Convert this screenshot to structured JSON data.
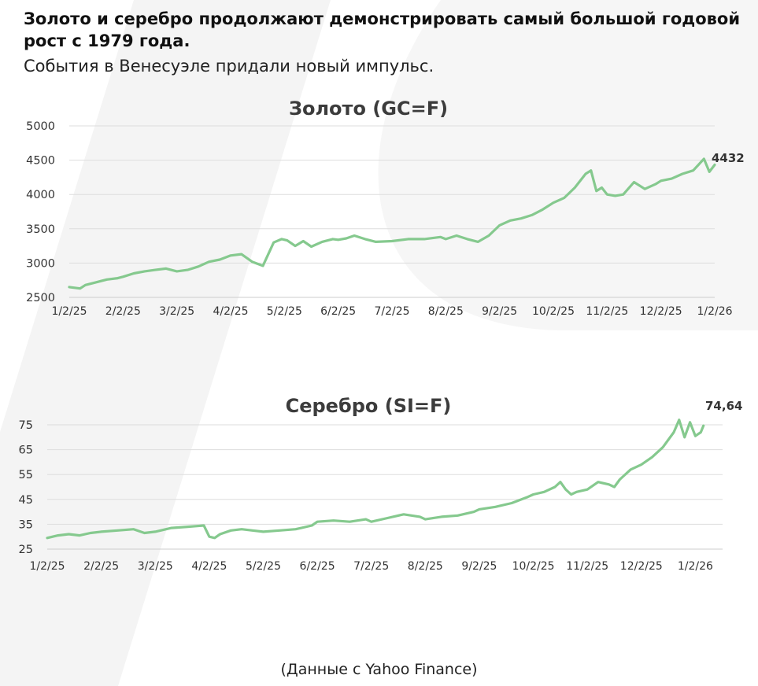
{
  "headline": "Золото и серебро продолжают демонстрировать самый большой годовой рост с 1979 года.",
  "subhead": "События в Венесуэле придали новый импульс.",
  "source": "(Данные с Yahoo Finance)",
  "colors": {
    "series": "#85c98e",
    "grid": "#dddddd",
    "text": "#333333"
  },
  "chart_data": [
    {
      "type": "line",
      "title": "Золото (GC=F)",
      "xlabel": "",
      "ylabel": "",
      "y_ticks": [
        "2500",
        "3000",
        "3500",
        "4000",
        "4500",
        "5000"
      ],
      "ylim": [
        2500,
        5000
      ],
      "x_ticks": [
        "1/2/25",
        "2/2/25",
        "3/2/25",
        "4/2/25",
        "5/2/25",
        "6/2/25",
        "7/2/25",
        "8/2/25",
        "9/2/25",
        "10/2/25",
        "11/2/25",
        "12/2/25",
        "1/2/26"
      ],
      "end_label": "4432",
      "grid": true,
      "series": [
        {
          "x": [
            0,
            0.1,
            0.2,
            0.3,
            0.5,
            0.7,
            0.9,
            1.0,
            1.2,
            1.4,
            1.6,
            1.8,
            2.0,
            2.2,
            2.4,
            2.6,
            2.8,
            3.0,
            3.2,
            3.4,
            3.6,
            3.8,
            3.95,
            4.05,
            4.2,
            4.35,
            4.5,
            4.7,
            4.9,
            5.0,
            5.15,
            5.3,
            5.5,
            5.7,
            6.0,
            6.3,
            6.6,
            6.9,
            7.0,
            7.2,
            7.4,
            7.6,
            7.8,
            8.0,
            8.2,
            8.4,
            8.6,
            8.8,
            9.0,
            9.2,
            9.4,
            9.6,
            9.7,
            9.8,
            9.9,
            10.0,
            10.15,
            10.3,
            10.5,
            10.7,
            10.9,
            11.0,
            11.2,
            11.4,
            11.6,
            11.8,
            11.9,
            12.0
          ],
          "values": [
            2650,
            2640,
            2630,
            2680,
            2720,
            2760,
            2780,
            2800,
            2850,
            2880,
            2900,
            2920,
            2880,
            2900,
            2950,
            3020,
            3050,
            3110,
            3130,
            3020,
            2960,
            3300,
            3350,
            3330,
            3250,
            3320,
            3240,
            3310,
            3350,
            3340,
            3360,
            3400,
            3350,
            3310,
            3320,
            3350,
            3350,
            3380,
            3350,
            3400,
            3350,
            3310,
            3400,
            3550,
            3620,
            3650,
            3700,
            3780,
            3880,
            3950,
            4100,
            4300,
            4350,
            4050,
            4100,
            4000,
            3980,
            4000,
            4180,
            4080,
            4150,
            4200,
            4230,
            4300,
            4350,
            4520,
            4330,
            4432
          ]
        }
      ]
    },
    {
      "type": "line",
      "title": "Серебро (SI=F)",
      "xlabel": "",
      "ylabel": "",
      "y_ticks": [
        "25",
        "35",
        "45",
        "55",
        "65",
        "75"
      ],
      "ylim": [
        25,
        80
      ],
      "x_ticks": [
        "1/2/25",
        "2/2/25",
        "3/2/25",
        "4/2/25",
        "5/2/25",
        "6/2/25",
        "7/2/25",
        "8/2/25",
        "9/2/25",
        "10/2/25",
        "11/2/25",
        "12/2/25",
        "1/2/26"
      ],
      "end_label": "74,64",
      "grid": true,
      "series": [
        {
          "x": [
            0,
            0.2,
            0.4,
            0.6,
            0.8,
            1.0,
            1.3,
            1.6,
            1.8,
            2.0,
            2.3,
            2.6,
            2.9,
            3.0,
            3.1,
            3.2,
            3.4,
            3.6,
            3.8,
            4.0,
            4.3,
            4.6,
            4.9,
            5.0,
            5.3,
            5.6,
            5.9,
            6.0,
            6.3,
            6.6,
            6.9,
            7.0,
            7.3,
            7.6,
            7.9,
            8.0,
            8.3,
            8.6,
            8.9,
            9.0,
            9.2,
            9.4,
            9.5,
            9.6,
            9.7,
            9.8,
            10.0,
            10.2,
            10.4,
            10.5,
            10.6,
            10.8,
            11.0,
            11.2,
            11.4,
            11.6,
            11.7,
            11.8,
            11.9,
            12.0,
            12.1,
            12.15
          ],
          "values": [
            29.5,
            30.5,
            31.0,
            30.5,
            31.5,
            32.0,
            32.5,
            33.0,
            31.5,
            32.0,
            33.5,
            34.0,
            34.5,
            30.0,
            29.5,
            31.0,
            32.5,
            33.0,
            32.5,
            32.0,
            32.5,
            33.0,
            34.5,
            36.0,
            36.5,
            36.0,
            37.0,
            36.0,
            37.5,
            39.0,
            38.0,
            37.0,
            38.0,
            38.5,
            40.0,
            41.0,
            42.0,
            43.5,
            46.0,
            47.0,
            48.0,
            50.0,
            52.0,
            49.0,
            47.0,
            48.0,
            49.0,
            52.0,
            51.0,
            50.0,
            53.0,
            57.0,
            59.0,
            62.0,
            66.0,
            72.0,
            77.0,
            70.0,
            76.0,
            70.5,
            72.0,
            74.64
          ]
        }
      ]
    }
  ]
}
